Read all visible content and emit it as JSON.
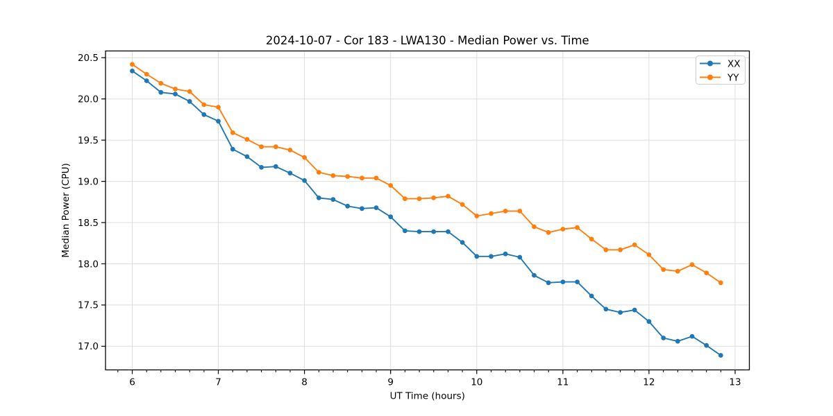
{
  "chart_data": {
    "type": "line",
    "title": "2024-10-07 - Cor 183 - LWA130 - Median Power vs. Time",
    "xlabel": "UT Time (hours)",
    "ylabel": "Median Power (CPU)",
    "xlim": [
      5.69,
      13.165
    ],
    "ylim": [
      16.713,
      20.582
    ],
    "xticks": [
      6,
      7,
      8,
      9,
      10,
      11,
      12,
      13
    ],
    "xtick_labels": [
      "6",
      "7",
      "8",
      "9",
      "10",
      "11",
      "12",
      "13"
    ],
    "x_minor_step": 0.16667,
    "yticks": [
      17.0,
      17.5,
      18.0,
      18.5,
      19.0,
      19.5,
      20.0,
      20.5
    ],
    "ytick_labels": [
      "17.0",
      "17.5",
      "18.0",
      "18.5",
      "19.0",
      "19.5",
      "20.0",
      "20.5"
    ],
    "grid": true,
    "grid_color": "#dedede",
    "spine_color": "#000000",
    "legend_position": "upper right",
    "x": [
      6.0,
      6.167,
      6.333,
      6.5,
      6.667,
      6.833,
      7.0,
      7.167,
      7.333,
      7.5,
      7.667,
      7.833,
      8.0,
      8.167,
      8.333,
      8.5,
      8.667,
      8.833,
      9.0,
      9.167,
      9.333,
      9.5,
      9.667,
      9.833,
      10.0,
      10.167,
      10.333,
      10.5,
      10.667,
      10.833,
      11.0,
      11.167,
      11.333,
      11.5,
      11.667,
      11.833,
      12.0,
      12.167,
      12.333,
      12.5,
      12.667,
      12.833
    ],
    "series": [
      {
        "name": "XX",
        "color": "#1f77b4",
        "values": [
          20.34,
          20.22,
          20.08,
          20.06,
          19.97,
          19.81,
          19.73,
          19.39,
          19.3,
          19.17,
          19.18,
          19.1,
          19.01,
          18.8,
          18.78,
          18.7,
          18.67,
          18.68,
          18.57,
          18.4,
          18.39,
          18.39,
          18.39,
          18.26,
          18.09,
          18.09,
          18.12,
          18.08,
          17.86,
          17.77,
          17.78,
          17.78,
          17.61,
          17.45,
          17.41,
          17.44,
          17.3,
          17.1,
          17.06,
          17.12,
          17.01,
          16.89
        ]
      },
      {
        "name": "YY",
        "color": "#ff7f0e",
        "values": [
          20.42,
          20.3,
          20.19,
          20.12,
          20.09,
          19.93,
          19.9,
          19.59,
          19.51,
          19.42,
          19.42,
          19.38,
          19.29,
          19.11,
          19.07,
          19.06,
          19.04,
          19.04,
          18.95,
          18.79,
          18.79,
          18.8,
          18.82,
          18.72,
          18.58,
          18.61,
          18.64,
          18.64,
          18.45,
          18.38,
          18.42,
          18.44,
          18.3,
          18.17,
          18.17,
          18.23,
          18.11,
          17.93,
          17.91,
          17.99,
          17.89,
          17.77
        ]
      }
    ]
  }
}
